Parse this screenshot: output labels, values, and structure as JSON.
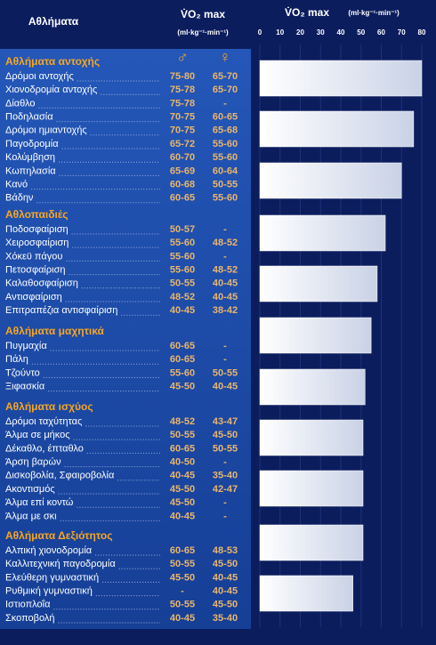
{
  "table": {
    "header": {
      "sports": "Αθλήματα",
      "vo2": "V̇O₂ max",
      "unit": "(ml·kg⁻¹·min⁻¹)",
      "male": "♂",
      "female": "♀"
    },
    "groups": [
      {
        "title": "Αθλήματα αντοχής",
        "rows": [
          [
            "Δρόμοι αντοχής",
            "75-80",
            "65-70"
          ],
          [
            "Χιονοδρομία αντοχής",
            "75-78",
            "65-70"
          ],
          [
            "Δίαθλο",
            "75-78",
            "-"
          ],
          [
            "Ποδηλασία",
            "70-75",
            "60-65"
          ],
          [
            "Δρόμοι ημιαντοχής",
            "70-75",
            "65-68"
          ],
          [
            "Παγοδρομία",
            "65-72",
            "55-60"
          ],
          [
            "Κολύμβηση",
            "60-70",
            "55-60"
          ],
          [
            "Κωπηλασία",
            "65-69",
            "60-64"
          ],
          [
            "Κανό",
            "60-68",
            "50-55"
          ],
          [
            "Βάδην",
            "60-65",
            "55-60"
          ]
        ]
      },
      {
        "title": "Αθλοπαιδιές",
        "rows": [
          [
            "Ποδοσφαίριση",
            "50-57",
            "-"
          ],
          [
            "Χειροσφαίριση",
            "55-60",
            "48-52"
          ],
          [
            "Χόκεϋ πάγου",
            "55-60",
            "-"
          ],
          [
            "Πετοσφαίριση",
            "55-60",
            "48-52"
          ],
          [
            "Καλαθοσφαίριση",
            "50-55",
            "40-45"
          ],
          [
            "Αντισφαίριση",
            "48-52",
            "40-45"
          ],
          [
            "Επιτραπέζια αντισφαίριση",
            "40-45",
            "38-42"
          ]
        ]
      },
      {
        "title": "Αθλήματα μαχητικά",
        "rows": [
          [
            "Πυγμαχία",
            "60-65",
            "-"
          ],
          [
            "Πάλη",
            "60-65",
            "-"
          ],
          [
            "Τζούντο",
            "55-60",
            "50-55"
          ],
          [
            "Ξιφασκία",
            "45-50",
            "40-45"
          ]
        ]
      },
      {
        "title": "Αθλήματα ισχύος",
        "rows": [
          [
            "Δρόμοι ταχύτητας",
            "48-52",
            "43-47"
          ],
          [
            "Άλμα σε μήκος",
            "50-55",
            "45-50"
          ],
          [
            "Δέκαθλο, έπταθλο",
            "60-65",
            "50-55"
          ],
          [
            "Άρση βαρών",
            "40-50",
            "-"
          ],
          [
            "Δισκοβολία, Σφαιροβολία",
            "40-45",
            "35-40"
          ],
          [
            "Ακοντισμός",
            "45-50",
            "42-47"
          ],
          [
            "Άλμα επί κοντώ",
            "45-50",
            "-"
          ],
          [
            "Άλμα με σκι",
            "40-45",
            "-"
          ]
        ]
      },
      {
        "title": "Αθλήματα Δεξιότητος",
        "rows": [
          [
            "Αλπική χιονοδρομία",
            "60-65",
            "48-53"
          ],
          [
            "Καλλιτεχνική παγοδρομία",
            "50-55",
            "45-50"
          ],
          [
            "Ελεύθερη γυμναστική",
            "45-50",
            "40-45"
          ],
          [
            "Ρυθμική γυμναστική",
            "-",
            "40-45"
          ],
          [
            "Ιστιοπλοΐα",
            "50-55",
            "45-50"
          ],
          [
            "Σκοποβολή",
            "40-45",
            "35-40"
          ]
        ]
      }
    ]
  },
  "chart_data": {
    "type": "bar",
    "title": "V̇O₂ max",
    "unit": "(ml·kg⁻¹·min⁻¹)",
    "values": [
      80,
      76,
      70,
      62,
      58,
      55,
      52,
      51,
      51,
      51,
      46
    ],
    "xlim": [
      0,
      80
    ],
    "xticks": [
      0,
      10,
      20,
      30,
      40,
      50,
      60,
      70,
      80
    ],
    "color": "#ffffff"
  }
}
